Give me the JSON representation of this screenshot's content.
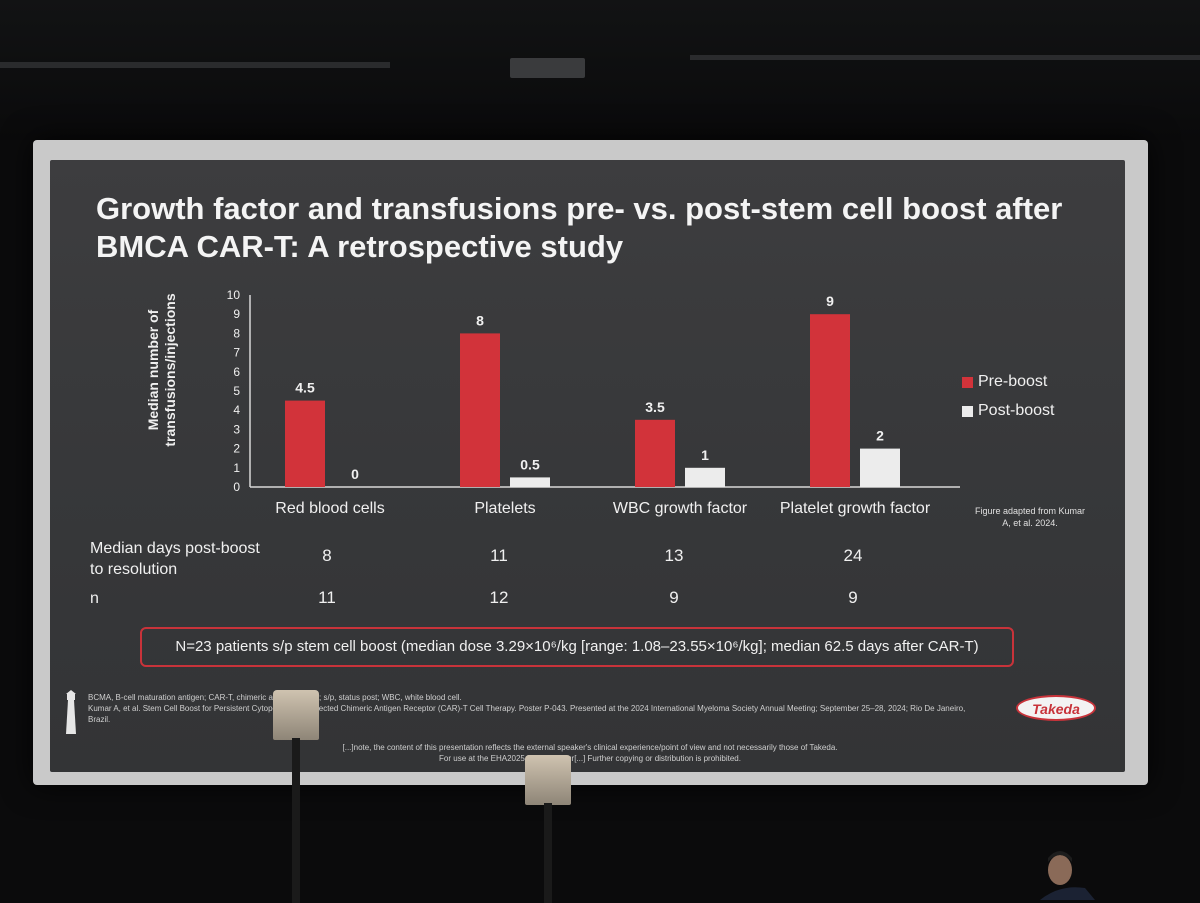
{
  "slide": {
    "title": "Growth factor and transfusions pre- vs. post-stem cell boost after BMCA CAR-T: A retrospective study",
    "source_note": "Figure adapted from Kumar A, et al. 2024.",
    "summary_box": "N=23 patients s/p stem cell boost (median dose 3.29×10⁶/kg [range: 1.08–23.55×10⁶/kg]; median 62.5 days after CAR-T)",
    "footnote_1": "BCMA, B-cell maturation antigen; CAR-T, chimeric an[...]tor T-cell; s/p, status post; WBC, white blood cell.",
    "footnote_2": "Kumar A, et al. Stem Cell Boost for Persistent Cytope[...]CMA-Directed Chimeric Antigen Receptor (CAR)-T Cell Therapy. Poster P-043. Presented at the 2024 International Myeloma Society Annual Meeting; September 25–28, 2024; Rio De Janeiro, Brazil.",
    "disclaimer_1": "[...]note, the content of this presentation reflects the external speaker's clinical experience/point of view and not necessarily those of Takeda.",
    "disclaimer_2": "For use at the EHA2025 Hybrid Congr[...] Further copying or distribution is prohibited.",
    "logo_text": "Takeda"
  },
  "table": {
    "row1_label_line1": "Median days post-boost",
    "row1_label_line2": "to resolution",
    "row1_values": [
      "8",
      "11",
      "13",
      "24"
    ],
    "row2_label": "n",
    "row2_values": [
      "11",
      "12",
      "9",
      "9"
    ]
  },
  "chart_data": {
    "type": "bar",
    "ylabel": "Median number of transfusions/injections",
    "ylim": [
      0,
      10
    ],
    "yticks": [
      0,
      1,
      2,
      3,
      4,
      5,
      6,
      7,
      8,
      9,
      10
    ],
    "categories": [
      "Red blood cells",
      "Platelets",
      "WBC growth factor",
      "Platelet growth factor"
    ],
    "series": [
      {
        "name": "Pre-boost",
        "color": "#d2333a",
        "values": [
          4.5,
          8,
          3.5,
          9
        ],
        "labels": [
          "4.5",
          "8",
          "3.5",
          "9"
        ]
      },
      {
        "name": "Post-boost",
        "color": "#ececec",
        "values": [
          0,
          0.5,
          1,
          2
        ],
        "labels": [
          "0",
          "0.5",
          "1",
          "2"
        ]
      }
    ],
    "legend": "right",
    "grid": false
  }
}
